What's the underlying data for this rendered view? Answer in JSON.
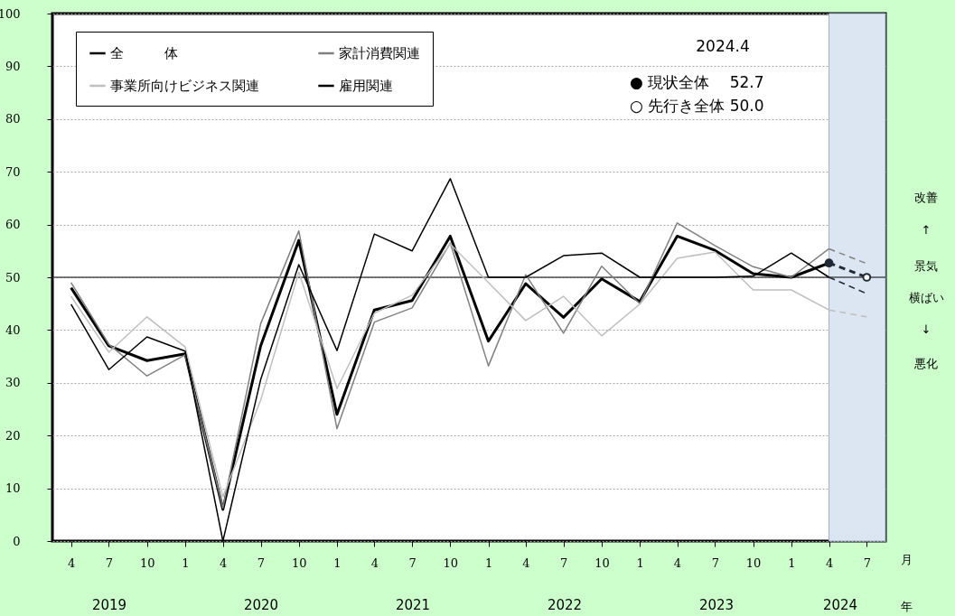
{
  "chart_data": {
    "type": "line",
    "x": [
      "2019-04",
      "2019-07",
      "2019-10",
      "2020-01",
      "2020-04",
      "2020-07",
      "2020-10",
      "2021-01",
      "2021-04",
      "2021-07",
      "2021-10",
      "2022-01",
      "2022-04",
      "2022-07",
      "2022-10",
      "2023-01",
      "2023-04",
      "2023-07",
      "2023-10",
      "2024-01",
      "2024-04",
      "2024-07"
    ],
    "xlim": [
      "2019-02-15",
      "2024-08-15"
    ],
    "xticks": [
      {
        "value": "2019-04",
        "label": "4"
      },
      {
        "value": "2019-07",
        "label": "7"
      },
      {
        "value": "2019-10",
        "label": "10"
      },
      {
        "value": "2020-01",
        "label": "1"
      },
      {
        "value": "2020-04",
        "label": "4"
      },
      {
        "value": "2020-07",
        "label": "7"
      },
      {
        "value": "2020-10",
        "label": "10"
      },
      {
        "value": "2021-01",
        "label": "1"
      },
      {
        "value": "2021-04",
        "label": "4"
      },
      {
        "value": "2021-07",
        "label": "7"
      },
      {
        "value": "2021-10",
        "label": "10"
      },
      {
        "value": "2022-01",
        "label": "1"
      },
      {
        "value": "2022-04",
        "label": "4"
      },
      {
        "value": "2022-07",
        "label": "7"
      },
      {
        "value": "2022-10",
        "label": "10"
      },
      {
        "value": "2023-01",
        "label": "1"
      },
      {
        "value": "2023-04",
        "label": "4"
      },
      {
        "value": "2023-07",
        "label": "7"
      },
      {
        "value": "2023-10",
        "label": "10"
      },
      {
        "value": "2024-01",
        "label": "1"
      },
      {
        "value": "2024-04",
        "label": "4"
      },
      {
        "value": "2024-07",
        "label": "7"
      }
    ],
    "xlabel": "月",
    "ylim": [
      0,
      100
    ],
    "yticks": [
      0,
      10,
      20,
      30,
      40,
      50,
      60,
      70,
      80,
      90,
      100
    ],
    "grid": "y",
    "legend": "top left",
    "series": [
      {
        "name": "全　　　体",
        "color": "#000000",
        "values": [
          48.0,
          37.0,
          34.2,
          35.5,
          6.0,
          37.0,
          57.0,
          24.0,
          43.8,
          45.6,
          57.8,
          37.9,
          48.8,
          42.4,
          49.7,
          45.4,
          57.8,
          55.1,
          50.7,
          50.0,
          52.7,
          null
        ]
      },
      {
        "name": "家計消費関連",
        "color": "#808080",
        "values": [
          49.0,
          37.3,
          31.3,
          35.3,
          6.3,
          41.2,
          58.8,
          21.3,
          41.5,
          44.2,
          56.5,
          33.2,
          50.5,
          39.4,
          52.1,
          45.0,
          60.3,
          56.0,
          52.0,
          50.0,
          55.4,
          null
        ]
      },
      {
        "name": "事業所向けビジネス関連",
        "color": "#bfbfbf",
        "values": [
          46.4,
          35.8,
          42.5,
          36.8,
          8.4,
          26.7,
          51.0,
          28.9,
          43.2,
          46.6,
          56.3,
          49.0,
          41.8,
          46.4,
          38.9,
          44.9,
          53.6,
          54.8,
          47.6,
          47.6,
          43.8,
          null
        ]
      },
      {
        "name": "雇用関連",
        "color": "#000000",
        "values": [
          44.9,
          32.5,
          38.7,
          36.0,
          0.0,
          30.6,
          52.4,
          36.1,
          58.2,
          55.0,
          68.7,
          50.0,
          50.0,
          54.1,
          54.6,
          50.0,
          50.0,
          50.0,
          50.2,
          54.6,
          50.0,
          null
        ]
      },
      {
        "color": "#808080",
        "line_style": "dashed",
        "values": [
          null,
          null,
          null,
          null,
          null,
          null,
          null,
          null,
          null,
          null,
          null,
          null,
          null,
          null,
          null,
          null,
          null,
          null,
          null,
          null,
          55.4,
          52.6
        ]
      },
      {
        "color": "#bfbfbf",
        "line_style": "dashed",
        "values": [
          null,
          null,
          null,
          null,
          null,
          null,
          null,
          null,
          null,
          null,
          null,
          null,
          null,
          null,
          null,
          null,
          null,
          null,
          null,
          null,
          43.8,
          42.5
        ]
      },
      {
        "color": "#1f2a36",
        "line_style": "dashed",
        "values": [
          null,
          null,
          null,
          null,
          null,
          null,
          null,
          null,
          null,
          null,
          null,
          null,
          null,
          null,
          null,
          null,
          null,
          null,
          null,
          null,
          50.0,
          46.9
        ]
      },
      {
        "color": "#1f2a36",
        "line_style": "dashed",
        "values": [
          null,
          null,
          null,
          null,
          null,
          null,
          null,
          null,
          null,
          null,
          null,
          null,
          null,
          null,
          null,
          null,
          null,
          null,
          null,
          null,
          52.7,
          50.0
        ]
      },
      {
        "type": "scatter",
        "marker": "circle",
        "color": "#1f2a36",
        "x": [
          "2024-04"
        ],
        "values": [
          52.7
        ]
      },
      {
        "type": "scatter",
        "marker": "circle",
        "color": "#ffffff",
        "x": [
          "2024-07"
        ],
        "values": [
          50.0
        ]
      }
    ],
    "ref_lines": [
      {
        "axis": "y",
        "value": 50,
        "color": "#000000"
      }
    ],
    "bands": [
      {
        "axis": "x",
        "from": "2024-04",
        "to": "2024-08-15",
        "color": "#dce6f2"
      }
    ],
    "annotations": [
      "2024.4",
      "●  現状全体　 52.7",
      "○  先行き全体 50.0",
      "改善",
      "↑",
      "景気",
      "横ばい",
      "↓",
      "悪化",
      "2019",
      "2020",
      "2021",
      "2022",
      "2023",
      "2024",
      "年"
    ]
  }
}
